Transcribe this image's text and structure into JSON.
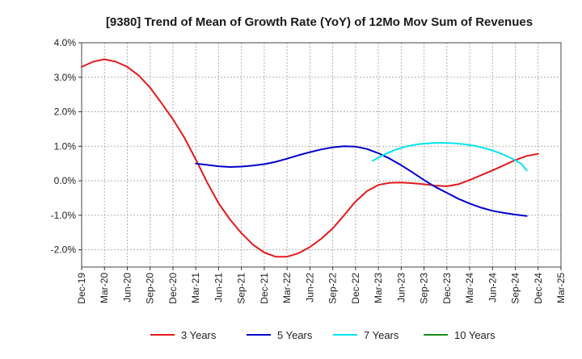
{
  "chart_data": {
    "type": "line",
    "title": "[9380]  Trend of Mean of Growth Rate (YoY) of 12Mo Mov Sum of Revenues",
    "xlabel": "",
    "ylabel": "",
    "ylim": [
      -2.5,
      4.0
    ],
    "yticks": [
      -2.0,
      -1.0,
      0.0,
      1.0,
      2.0,
      3.0,
      4.0
    ],
    "ytick_labels": [
      "-2.0%",
      "-1.0%",
      "0.0%",
      "1.0%",
      "2.0%",
      "3.0%",
      "4.0%"
    ],
    "x_tick_labels": [
      "Dec-19",
      "Mar-20",
      "Jun-20",
      "Sep-20",
      "Dec-20",
      "Mar-21",
      "Jun-21",
      "Sep-21",
      "Dec-21",
      "Mar-22",
      "Jun-22",
      "Sep-22",
      "Dec-22",
      "Mar-23",
      "Jun-23",
      "Sep-23",
      "Dec-23",
      "Mar-24",
      "Jun-24",
      "Sep-24",
      "Dec-24",
      "Mar-25"
    ],
    "grid": true,
    "legend_position": "bottom",
    "series": [
      {
        "name": "3 Years",
        "color": "#e31a1c",
        "points": [
          [
            0,
            3.3
          ],
          [
            0.5,
            3.45
          ],
          [
            1,
            3.52
          ],
          [
            1.5,
            3.45
          ],
          [
            2,
            3.3
          ],
          [
            2.5,
            3.05
          ],
          [
            3,
            2.7
          ],
          [
            3.5,
            2.25
          ],
          [
            4,
            1.78
          ],
          [
            4.5,
            1.25
          ],
          [
            5,
            0.62
          ],
          [
            5.5,
            -0.05
          ],
          [
            6,
            -0.65
          ],
          [
            6.5,
            -1.12
          ],
          [
            7,
            -1.52
          ],
          [
            7.5,
            -1.85
          ],
          [
            8,
            -2.08
          ],
          [
            8.5,
            -2.2
          ],
          [
            9,
            -2.2
          ],
          [
            9.5,
            -2.1
          ],
          [
            10,
            -1.92
          ],
          [
            10.5,
            -1.68
          ],
          [
            11,
            -1.38
          ],
          [
            11.5,
            -1.0
          ],
          [
            12,
            -0.6
          ],
          [
            12.5,
            -0.3
          ],
          [
            13,
            -0.12
          ],
          [
            13.5,
            -0.06
          ],
          [
            14,
            -0.05
          ],
          [
            14.5,
            -0.07
          ],
          [
            15,
            -0.1
          ],
          [
            15.5,
            -0.14
          ],
          [
            16,
            -0.16
          ],
          [
            16.5,
            -0.1
          ],
          [
            17,
            0.02
          ],
          [
            17.5,
            0.16
          ],
          [
            18,
            0.3
          ],
          [
            18.5,
            0.45
          ],
          [
            19,
            0.6
          ],
          [
            19.5,
            0.72
          ],
          [
            20,
            0.78
          ]
        ]
      },
      {
        "name": "5 Years",
        "color": "#0000cc",
        "points": [
          [
            5,
            0.5
          ],
          [
            5.5,
            0.46
          ],
          [
            6,
            0.42
          ],
          [
            6.5,
            0.4
          ],
          [
            7,
            0.41
          ],
          [
            7.5,
            0.44
          ],
          [
            8,
            0.48
          ],
          [
            8.5,
            0.55
          ],
          [
            9,
            0.64
          ],
          [
            9.5,
            0.74
          ],
          [
            10,
            0.83
          ],
          [
            10.5,
            0.91
          ],
          [
            11,
            0.97
          ],
          [
            11.5,
            1.0
          ],
          [
            12,
            0.99
          ],
          [
            12.5,
            0.92
          ],
          [
            13,
            0.8
          ],
          [
            13.5,
            0.64
          ],
          [
            14,
            0.45
          ],
          [
            14.5,
            0.24
          ],
          [
            15,
            0.02
          ],
          [
            15.5,
            -0.18
          ],
          [
            16,
            -0.35
          ],
          [
            16.5,
            -0.52
          ],
          [
            17,
            -0.66
          ],
          [
            17.5,
            -0.78
          ],
          [
            18,
            -0.87
          ],
          [
            18.5,
            -0.93
          ],
          [
            19,
            -0.98
          ],
          [
            19.5,
            -1.02
          ]
        ]
      },
      {
        "name": "7 Years",
        "color": "#00e5ee",
        "points": [
          [
            12.75,
            0.58
          ],
          [
            13.25,
            0.76
          ],
          [
            13.75,
            0.9
          ],
          [
            14.25,
            1.0
          ],
          [
            14.75,
            1.06
          ],
          [
            15.25,
            1.09
          ],
          [
            15.75,
            1.1
          ],
          [
            16.25,
            1.09
          ],
          [
            16.75,
            1.06
          ],
          [
            17.25,
            1.01
          ],
          [
            17.75,
            0.93
          ],
          [
            18.25,
            0.82
          ],
          [
            18.75,
            0.68
          ],
          [
            19.25,
            0.5
          ],
          [
            19.5,
            0.3
          ]
        ]
      },
      {
        "name": "10 Years",
        "color": "#1a8f1a",
        "points": []
      }
    ]
  }
}
